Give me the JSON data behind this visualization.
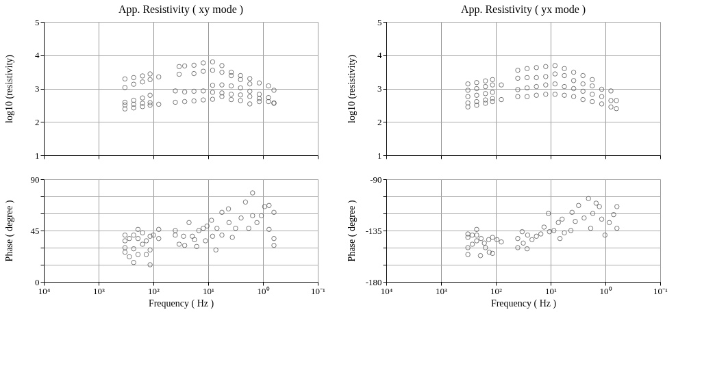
{
  "chart_data": [
    {
      "type": "scatter",
      "title": "App. Resistivity ( xy mode )",
      "ylabel": "log10 (resistivity)",
      "color": "#555555",
      "marker": "circle",
      "log": "x",
      "grid": true,
      "tick_labels": "y",
      "xlim": [
        10000,
        0.1
      ],
      "xticks": [
        {
          "value": 10000,
          "label": null
        },
        {
          "value": 1000,
          "label": null
        },
        {
          "value": 100,
          "label": null
        },
        {
          "value": 10,
          "label": null
        },
        {
          "value": 1,
          "label": null
        },
        {
          "value": 0.1,
          "label": null
        }
      ],
      "ylim": [
        1,
        5
      ],
      "yticks": [
        1,
        2,
        3,
        4,
        5
      ],
      "x": [
        331,
        229,
        158,
        115,
        80,
        331,
        229,
        158,
        115,
        331,
        229,
        158,
        115,
        331,
        229,
        158,
        115,
        80,
        331,
        229,
        158,
        115,
        33.9,
        26.9,
        18.2,
        12.3,
        8.32,
        5.62,
        3.8,
        2.57,
        1.74,
        1.17,
        0.794,
        0.631,
        33.9,
        18.2,
        12.3,
        8.32,
        5.62,
        3.8,
        2.57,
        1.74,
        39.8,
        26.9,
        18.2,
        12.3,
        8.32,
        5.62,
        3.8,
        2.57,
        1.74,
        1.17,
        0.794,
        0.631,
        39.8,
        26.9,
        18.2,
        12.3,
        8.32,
        5.62,
        3.8,
        2.57,
        1.74,
        1.17,
        0.794,
        0.631,
        8.32,
        5.62,
        3.8,
        2.57,
        1.74,
        1.17
      ],
      "values": [
        3.29,
        3.33,
        3.38,
        3.44,
        3.35,
        3.03,
        3.13,
        3.2,
        3.27,
        2.59,
        2.65,
        2.72,
        2.8,
        2.51,
        2.53,
        2.56,
        2.58,
        2.53,
        2.39,
        2.42,
        2.46,
        2.5,
        3.66,
        3.68,
        3.7,
        3.77,
        3.8,
        3.69,
        3.49,
        3.39,
        3.3,
        3.17,
        3.08,
        2.95,
        3.43,
        3.45,
        3.52,
        3.55,
        3.49,
        3.39,
        3.27,
        3.14,
        2.93,
        2.9,
        2.92,
        2.93,
        3.1,
        3.11,
        3.08,
        3.02,
        2.92,
        2.83,
        2.73,
        2.56,
        2.59,
        2.61,
        2.63,
        2.66,
        2.68,
        2.76,
        2.67,
        2.64,
        2.54,
        2.61,
        2.61,
        2.57,
        2.89,
        2.87,
        2.83,
        2.81,
        2.76,
        2.7
      ]
    },
    {
      "type": "scatter",
      "title": "App. Resistivity ( yx mode )",
      "ylabel": "log10 (resistivity)",
      "color": "#555555",
      "marker": "circle",
      "log": "x",
      "grid": true,
      "tick_labels": "y",
      "xlim": [
        10000,
        0.1
      ],
      "xticks": [
        {
          "value": 10000,
          "label": null
        },
        {
          "value": 1000,
          "label": null
        },
        {
          "value": 100,
          "label": null
        },
        {
          "value": 10,
          "label": null
        },
        {
          "value": 1,
          "label": null
        },
        {
          "value": 0.1,
          "label": null
        }
      ],
      "ylim": [
        1,
        5
      ],
      "yticks": [
        1,
        2,
        3,
        4,
        5
      ],
      "x": [
        324,
        224,
        155,
        115,
        324,
        224,
        155,
        115,
        324,
        224,
        155,
        115,
        324,
        224,
        155,
        115,
        324,
        224,
        155,
        115,
        79.4,
        79.4,
        39.8,
        26.9,
        18.2,
        12.3,
        8.32,
        5.62,
        3.8,
        2.57,
        1.74,
        39.8,
        26.9,
        18.2,
        12.3,
        8.32,
        5.62,
        3.8,
        2.57,
        1.74,
        1.17,
        0.794,
        39.8,
        26.9,
        18.2,
        12.3,
        8.32,
        5.62,
        3.8,
        2.57,
        1.74,
        1.17,
        0.794,
        0.631,
        39.8,
        26.9,
        18.2,
        12.3,
        8.32,
        5.62,
        3.8,
        2.57,
        1.74,
        1.17,
        0.794,
        0.631
      ],
      "values": [
        3.14,
        3.18,
        3.23,
        3.27,
        2.95,
        3.0,
        3.06,
        3.11,
        2.76,
        2.8,
        2.85,
        2.89,
        2.57,
        2.61,
        2.66,
        2.7,
        2.45,
        2.5,
        2.56,
        2.61,
        3.11,
        2.67,
        3.55,
        3.6,
        3.63,
        3.66,
        3.69,
        3.6,
        3.49,
        3.39,
        3.27,
        3.31,
        3.33,
        3.33,
        3.36,
        3.44,
        3.39,
        3.24,
        3.14,
        3.08,
        2.98,
        2.93,
        2.97,
        3.02,
        3.06,
        3.11,
        3.14,
        3.06,
        3.0,
        2.92,
        2.83,
        2.76,
        2.64,
        2.64,
        2.76,
        2.76,
        2.8,
        2.83,
        2.83,
        2.8,
        2.76,
        2.67,
        2.61,
        2.54,
        2.45,
        2.4
      ]
    },
    {
      "type": "scatter",
      "xlabel": "Frequency ( Hz )",
      "ylabel": "Phase ( degree )",
      "color": "#555555",
      "marker": "circle",
      "log": "x",
      "grid": true,
      "xlim": [
        10000,
        0.1
      ],
      "xticks": [
        {
          "value": 10000,
          "label": "10⁴"
        },
        {
          "value": 1000,
          "label": "10³"
        },
        {
          "value": 100,
          "label": "10²"
        },
        {
          "value": 10,
          "label": "10¹"
        },
        {
          "value": 1,
          "label": "10⁰"
        },
        {
          "value": 0.1,
          "label": "10⁻¹"
        }
      ],
      "ylim": [
        0,
        90
      ],
      "yticks": [
        0,
        {
          "value": 15,
          "label": null
        },
        {
          "value": 30,
          "label": null
        },
        45,
        {
          "value": 60,
          "label": null
        },
        {
          "value": 75,
          "label": null
        },
        90
      ],
      "x": [
        330,
        330,
        330,
        330,
        275,
        275,
        229,
        229,
        229,
        191,
        191,
        191,
        158,
        158,
        135,
        135,
        115,
        115,
        115,
        100,
        80,
        80,
        39.9,
        39.9,
        33.9,
        28.2,
        26.9,
        22.4,
        19.5,
        17.8,
        16.2,
        14.8,
        12.3,
        11.2,
        10.5,
        8.71,
        8.32,
        7.24,
        6.92,
        5.62,
        5.62,
        4.27,
        4.17,
        3.63,
        3.16,
        2.51,
        2.09,
        1.82,
        1.55,
        1.55,
        1.29,
        1.07,
        0.933,
        0.776,
        0.776,
        0.631,
        0.631,
        0.631
      ],
      "values": [
        41,
        36,
        30,
        26,
        38,
        22,
        41,
        29,
        17,
        46,
        38,
        24,
        43,
        33,
        36,
        24,
        40,
        28,
        15,
        41,
        46,
        38,
        45,
        41,
        33,
        40,
        32,
        52,
        40,
        37,
        31,
        45,
        47,
        36,
        49,
        54,
        40,
        28,
        47,
        41,
        61,
        64,
        52,
        39,
        47,
        56,
        70,
        47,
        78,
        58,
        52,
        58,
        66,
        67,
        46,
        61,
        38,
        32
      ]
    },
    {
      "type": "scatter",
      "xlabel": "Frequency ( Hz )",
      "ylabel": "Phase ( degree )",
      "color": "#555555",
      "marker": "circle",
      "log": "x",
      "grid": true,
      "xlim": [
        10000,
        0.1
      ],
      "xticks": [
        {
          "value": 10000,
          "label": "10⁴"
        },
        {
          "value": 1000,
          "label": "10³"
        },
        {
          "value": 100,
          "label": "10²"
        },
        {
          "value": 10,
          "label": "10¹"
        },
        {
          "value": 1,
          "label": "10⁰"
        },
        {
          "value": 0.1,
          "label": "10⁻¹"
        }
      ],
      "ylim": [
        -180,
        -90
      ],
      "yticks": [
        -180,
        {
          "value": -165,
          "label": null
        },
        {
          "value": -150,
          "label": null
        },
        -135,
        {
          "value": -120,
          "label": null
        },
        {
          "value": -105,
          "label": null
        },
        -90
      ],
      "x": [
        324,
        324,
        324,
        324,
        269,
        269,
        224,
        224,
        224,
        191,
        186,
        162,
        155,
        135,
        132,
        115,
        115,
        95.5,
        79.4,
        39.8,
        39.8,
        33.1,
        31.6,
        26.9,
        26.3,
        21.9,
        18.2,
        15.1,
        13.2,
        11.0,
        10.5,
        8.71,
        7.24,
        6.76,
        6.17,
        5.62,
        4.27,
        4.07,
        3.55,
        3.09,
        2.45,
        2.04,
        1.86,
        1.7,
        1.48,
        1.29,
        1.17,
        1.02,
        0.851,
        0.708,
        0.617,
        0.617
      ],
      "values": [
        -138,
        -141,
        -150,
        -156,
        -139,
        -147,
        -134,
        -144,
        -139,
        -157,
        -142,
        -146,
        -150,
        -143,
        -154,
        -141,
        -155,
        -143,
        -145,
        -142,
        -150,
        -136,
        -146,
        -151,
        -139,
        -143,
        -140,
        -138,
        -132,
        -120,
        -136,
        -135,
        -128,
        -142,
        -125,
        -137,
        -135,
        -119,
        -127,
        -113,
        -124,
        -107,
        -133,
        -120,
        -111,
        -114,
        -125,
        -139,
        -128,
        -121,
        -114,
        -133
      ]
    }
  ]
}
